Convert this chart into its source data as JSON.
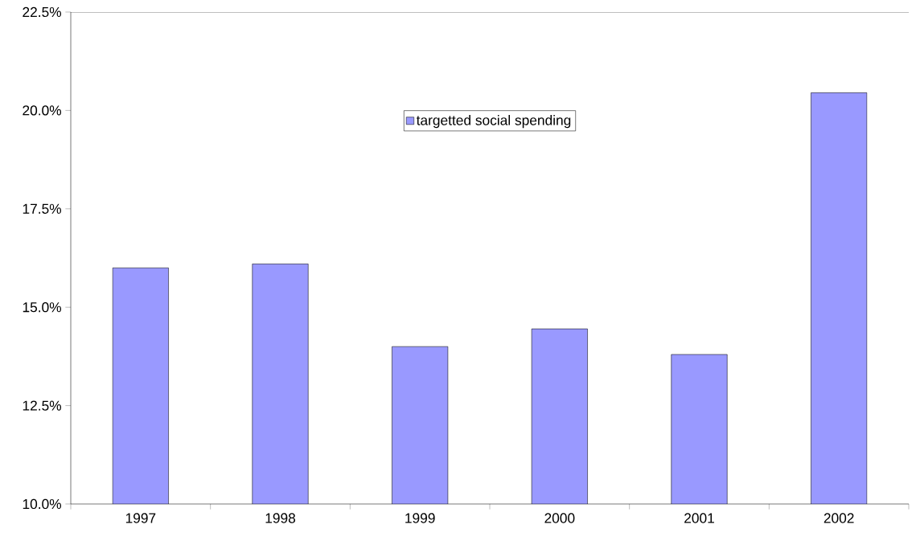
{
  "chart_data": {
    "type": "bar",
    "categories": [
      "1997",
      "1998",
      "1999",
      "2000",
      "2001",
      "2002"
    ],
    "series": [
      {
        "name": "targetted social spending",
        "color": "#9999ff",
        "values": [
          16.0,
          16.1,
          14.0,
          14.45,
          13.8,
          20.45
        ]
      }
    ],
    "ylim": [
      10,
      22.5
    ],
    "yticks": [
      {
        "value": 10,
        "label": "10.0%"
      },
      {
        "value": 12.5,
        "label": "12.5%"
      },
      {
        "value": 15,
        "label": "15.0%"
      },
      {
        "value": 17.5,
        "label": "17.5%"
      },
      {
        "value": 20,
        "label": "20.0%"
      },
      {
        "value": 22.5,
        "label": "22.5%"
      }
    ],
    "grid": false,
    "legend": "top"
  }
}
